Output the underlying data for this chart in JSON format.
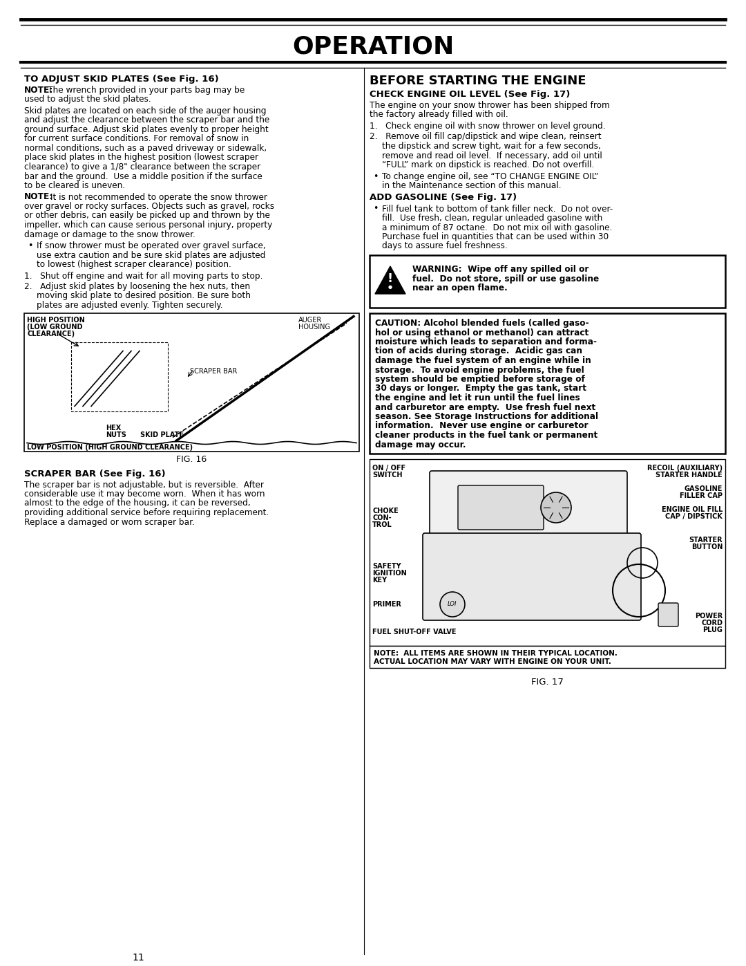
{
  "title": "OPERATION",
  "page_number": "11",
  "bg": "#ffffff",
  "left": {
    "s1": "TO ADJUST SKID PLATES (See Fig. 16)",
    "n1a": "NOTE:",
    "n1b": "  The wrench provided in your parts bag may be\nused to adjust the skid plates.",
    "p1": [
      "Skid plates are located on each side of the auger housing",
      "and adjust the clearance between the scraper bar and the",
      "ground surface. Adjust skid plates evenly to proper height",
      "for current surface conditions. For removal of snow in",
      "normal conditions, such as a paved driveway or sidewalk,",
      "place skid plates in the highest position (lowest scraper",
      "clearance) to give a 1/8\" clearance between the scraper",
      "bar and the ground.  Use a middle position if the surface",
      "to be cleared is uneven."
    ],
    "n2a": "NOTE:",
    "n2b": " It is not recommended to operate the snow thrower",
    "p2": [
      "over gravel or rocky surfaces. Objects such as gravel, rocks",
      "or other debris, can easily be picked up and thrown by the",
      "impeller, which can cause serious personal injury, property",
      "damage or damage to the snow thrower."
    ],
    "b1": [
      "If snow thrower must be operated over gravel surface,",
      "use extra caution and be sure skid plates are adjusted",
      "to lowest (highest scraper clearance) position."
    ],
    "l1": "1.   Shut off engine and wait for all moving parts to stop.",
    "l2a": "2.   Adjust skid plates by loosening the hex nuts, then",
    "l2b": "moving skid plate to desired position. Be sure both",
    "l2c": "plates are adjusted evenly. Tighten securely.",
    "fig16_cap": "FIG. 16",
    "s2": "SCRAPER BAR (See Fig. 16)",
    "p3": [
      "The scraper bar is not adjustable, but is reversible.  After",
      "considerable use it may become worn.  When it has worn",
      "almost to the edge of the housing, it can be reversed,",
      "providing additional service before requiring replacement.",
      "Replace a damaged or worn scraper bar."
    ]
  },
  "right": {
    "s1": "BEFORE STARTING THE ENGINE",
    "s2": "CHECK ENGINE OIL LEVEL (See Fig. 17)",
    "p1": [
      "The engine on your snow thrower has been shipped from",
      "the factory already filled with oil."
    ],
    "l1": "1.   Check engine oil with snow thrower on level ground.",
    "l2a": "2.   Remove oil fill cap/dipstick and wipe clean, reinsert",
    "l2b": "the dipstick and screw tight, wait for a few seconds,",
    "l2c": "remove and read oil level.  If necessary, add oil until",
    "l2d": "“FULL” mark on dipstick is reached. Do not overfill.",
    "b1": [
      "To change engine oil, see “TO CHANGE ENGINE OIL”",
      "in the Maintenance section of this manual."
    ],
    "s3": "ADD GASOLINE (See Fig. 17)",
    "b2": [
      "Fill fuel tank to bottom of tank filler neck.  Do not over-",
      "fill.  Use fresh, clean, regular unleaded gasoline with",
      "a minimum of 87 octane.  Do not mix oil with gasoline.",
      "Purchase fuel in quantities that can be used within 30",
      "days to assure fuel freshness."
    ],
    "warn": [
      "WARNING:  Wipe off any spilled oil or",
      "fuel.  Do not store, spill or use gasoline",
      "near an open flame."
    ],
    "caut": [
      "CAUTION: Alcohol blended fuels (called gaso-",
      "hol or using ethanol or methanol) can attract",
      "moisture which leads to separation and forma-",
      "tion of acids during storage.  Acidic gas can",
      "damage the fuel system of an engine while in",
      "storage.  To avoid engine problems, the fuel",
      "system should be emptied before storage of",
      "30 days or longer.  Empty the gas tank, start",
      "the engine and let it run until the fuel lines",
      "and carburetor are empty.  Use fresh fuel next",
      "season. See Storage Instructions for additional",
      "information.  Never use engine or carburetor",
      "cleaner products in the fuel tank or permanent",
      "damage may occur."
    ],
    "fig17_note1": "NOTE:  ALL ITEMS ARE SHOWN IN THEIR TYPICAL LOCATION.",
    "fig17_note2": "ACTUAL LOCATION MAY VARY WITH ENGINE ON YOUR UNIT.",
    "fig17_cap": "FIG. 17",
    "fig17_labels": {
      "on_off": [
        "ON / OFF",
        "SWITCH"
      ],
      "recoil": [
        "RECOIL (AUXILIARY)",
        "STARTER HANDLE"
      ],
      "gasoline": [
        "GASOLINE",
        "FILLER CAP"
      ],
      "engine_oil": [
        "ENGINE OIL FILL",
        "CAP / DIPSTICK"
      ],
      "choke": [
        "CHOKE",
        "CON-",
        "TROL"
      ],
      "starter": [
        "STARTER",
        "BUTTON"
      ],
      "safety": [
        "SAFETY",
        "IGNITION",
        "KEY"
      ],
      "primer": [
        "PRIMER"
      ],
      "fuel": [
        "FUEL SHUT-OFF VALVE"
      ],
      "power": [
        "POWER",
        "CORD",
        "PLUG"
      ]
    }
  }
}
